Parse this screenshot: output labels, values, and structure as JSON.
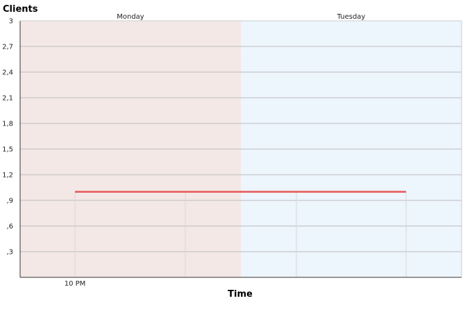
{
  "chart_data": {
    "type": "line",
    "ylabel": "Clients",
    "xlabel": "Time",
    "ylim": [
      0,
      3
    ],
    "y_ticks": [
      "3",
      "2,7",
      "2,4",
      "2,1",
      "1,8",
      "1,5",
      "1,2",
      ",9",
      ",6",
      ",3"
    ],
    "y_tick_values": [
      3,
      2.7,
      2.4,
      2.1,
      1.8,
      1.5,
      1.2,
      0.9,
      0.6,
      0.3
    ],
    "x_tick_labels": [
      "10 PM"
    ],
    "day_bands": [
      {
        "label": "Monday",
        "color": "#f3e8e6"
      },
      {
        "label": "Tuesday",
        "color": "#edf5fd"
      }
    ],
    "grid": true,
    "series": [
      {
        "values": [
          1,
          1
        ],
        "color": "#e85555"
      }
    ]
  }
}
